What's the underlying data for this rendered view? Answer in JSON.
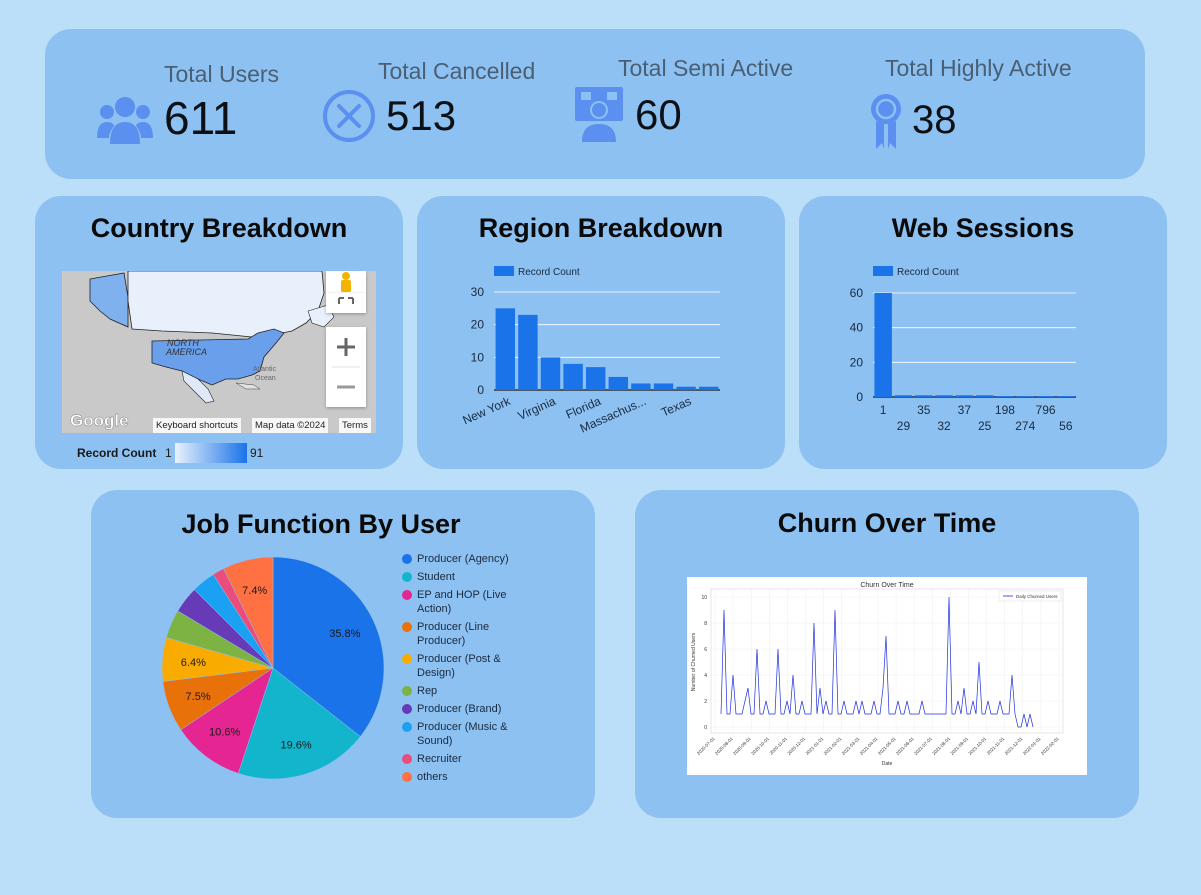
{
  "kpis": {
    "total_users": {
      "label": "Total Users",
      "value": "611"
    },
    "total_cancelled": {
      "label": "Total Cancelled",
      "value": "513"
    },
    "total_semi_active": {
      "label": "Total Semi Active",
      "value": "60"
    },
    "total_highly_active": {
      "label": "Total Highly Active",
      "value": "38"
    }
  },
  "country_breakdown": {
    "title": "Country Breakdown",
    "map_labels": {
      "north_america": "NORTH\nAMERICA",
      "atlantic": "Atlantic\nOcean"
    },
    "attribution": {
      "google": "Google",
      "shortcuts": "Keyboard shortcuts",
      "map_data": "Map data ©2024",
      "terms": "Terms"
    },
    "legend": {
      "label": "Record Count",
      "min": "1",
      "max": "91"
    }
  },
  "region_breakdown": {
    "title": "Region Breakdown",
    "legend_label": "Record Count",
    "chart_data": {
      "type": "bar",
      "categories": [
        "New York",
        "",
        "Virginia",
        "",
        "Florida",
        "",
        "Massachus...",
        "",
        "Texas",
        ""
      ],
      "series": [
        {
          "name": "Record Count",
          "values": [
            25,
            23,
            10,
            8,
            7,
            4,
            2,
            2,
            1,
            1
          ]
        }
      ],
      "ylim": [
        0,
        30
      ],
      "yticks": [
        "0",
        "10",
        "20",
        "30"
      ]
    }
  },
  "web_sessions": {
    "title": "Web Sessions",
    "legend_label": "Record Count",
    "chart_data": {
      "type": "bar",
      "categories": [
        "1",
        "29",
        "35",
        "32",
        "37",
        "25",
        "198",
        "274",
        "796",
        "56"
      ],
      "series": [
        {
          "name": "Record Count",
          "values": [
            60,
            1,
            1,
            1,
            1,
            1,
            0.5,
            0.5,
            0.5,
            0.5
          ]
        }
      ],
      "ylim": [
        0,
        60
      ],
      "yticks": [
        "0",
        "20",
        "40",
        "60"
      ]
    }
  },
  "job_function": {
    "title": "Job Function By User",
    "chart_data": {
      "type": "pie",
      "slices": [
        {
          "label": "Producer (Agency)",
          "value": 35.8,
          "pct_label": "35.8%",
          "color": "#1a73e8"
        },
        {
          "label": "Student",
          "value": 19.6,
          "pct_label": "19.6%",
          "color": "#12b5cb"
        },
        {
          "label": "EP and HOP (Live Action)",
          "value": 10.6,
          "pct_label": "10.6%",
          "color": "#e52592"
        },
        {
          "label": "Producer (Line Producer)",
          "value": 7.5,
          "pct_label": "7.5%",
          "color": "#e8710a"
        },
        {
          "label": "Producer (Post & Design)",
          "value": 6.4,
          "pct_label": "6.4%",
          "color": "#f9ab00"
        },
        {
          "label": "Rep",
          "value": 4.2,
          "pct_label": "",
          "color": "#7cb342"
        },
        {
          "label": "Producer (Brand)",
          "value": 3.9,
          "pct_label": "",
          "color": "#673ab7"
        },
        {
          "label": "Producer (Music & Sound)",
          "value": 3.5,
          "pct_label": "",
          "color": "#1ba1f2"
        },
        {
          "label": "Recruiter",
          "value": 1.7,
          "pct_label": "",
          "color": "#ea4c7c"
        },
        {
          "label": "others",
          "value": 7.4,
          "pct_label": "7.4%",
          "color": "#ff7043"
        }
      ]
    },
    "legend_lines": [
      [
        "Producer (Agency)"
      ],
      [
        "Student"
      ],
      [
        "EP and HOP (Live",
        "Action)"
      ],
      [
        "Producer (Line",
        "Producer)"
      ],
      [
        "Producer (Post &",
        "Design)"
      ],
      [
        "Rep"
      ],
      [
        "Producer (Brand)"
      ],
      [
        "Producer (Music &",
        "Sound)"
      ],
      [
        "Recruiter"
      ],
      [
        "others"
      ]
    ]
  },
  "churn": {
    "title": "Churn Over Time",
    "chart_data": {
      "type": "line",
      "title": "Churn Over Time",
      "xlabel": "Date",
      "ylabel": "Number of Churned Users",
      "legend": "Daily Churned Users",
      "ylim": [
        0,
        10
      ],
      "yticks": [
        "0",
        "2",
        "4",
        "6",
        "8",
        "10"
      ],
      "xticks": [
        "2020-07-01",
        "2020-08-01",
        "2020-09-01",
        "2020-10-01",
        "2020-11-01",
        "2020-12-01",
        "2021-01-01",
        "2021-02-01",
        "2021-03-01",
        "2021-04-01",
        "2021-05-01",
        "2021-06-01",
        "2021-07-01",
        "2021-08-01",
        "2021-09-01",
        "2021-10-01",
        "2021-11-01",
        "2021-12-01",
        "2022-01-01",
        "2022-02-01"
      ],
      "series": [
        {
          "name": "Daily Churned Users",
          "values": [
            1,
            9,
            1,
            1,
            4,
            1,
            1,
            1,
            2,
            3,
            1,
            1,
            6,
            1,
            1,
            2,
            1,
            1,
            1,
            6,
            1,
            1,
            2,
            1,
            4,
            1,
            1,
            2,
            1,
            1,
            1,
            8,
            1,
            3,
            1,
            2,
            1,
            1,
            9,
            1,
            1,
            2,
            1,
            1,
            1,
            2,
            1,
            2,
            1,
            1,
            1,
            2,
            1,
            1,
            3,
            7,
            1,
            1,
            1,
            2,
            1,
            1,
            2,
            1,
            1,
            1,
            1,
            2,
            1,
            1,
            1,
            1,
            1,
            1,
            1,
            1,
            10,
            1,
            1,
            2,
            1,
            3,
            1,
            1,
            2,
            1,
            5,
            1,
            1,
            2,
            1,
            1,
            1,
            2,
            1,
            1,
            1,
            4,
            1,
            0,
            0,
            1,
            0,
            1,
            0
          ]
        }
      ]
    }
  }
}
